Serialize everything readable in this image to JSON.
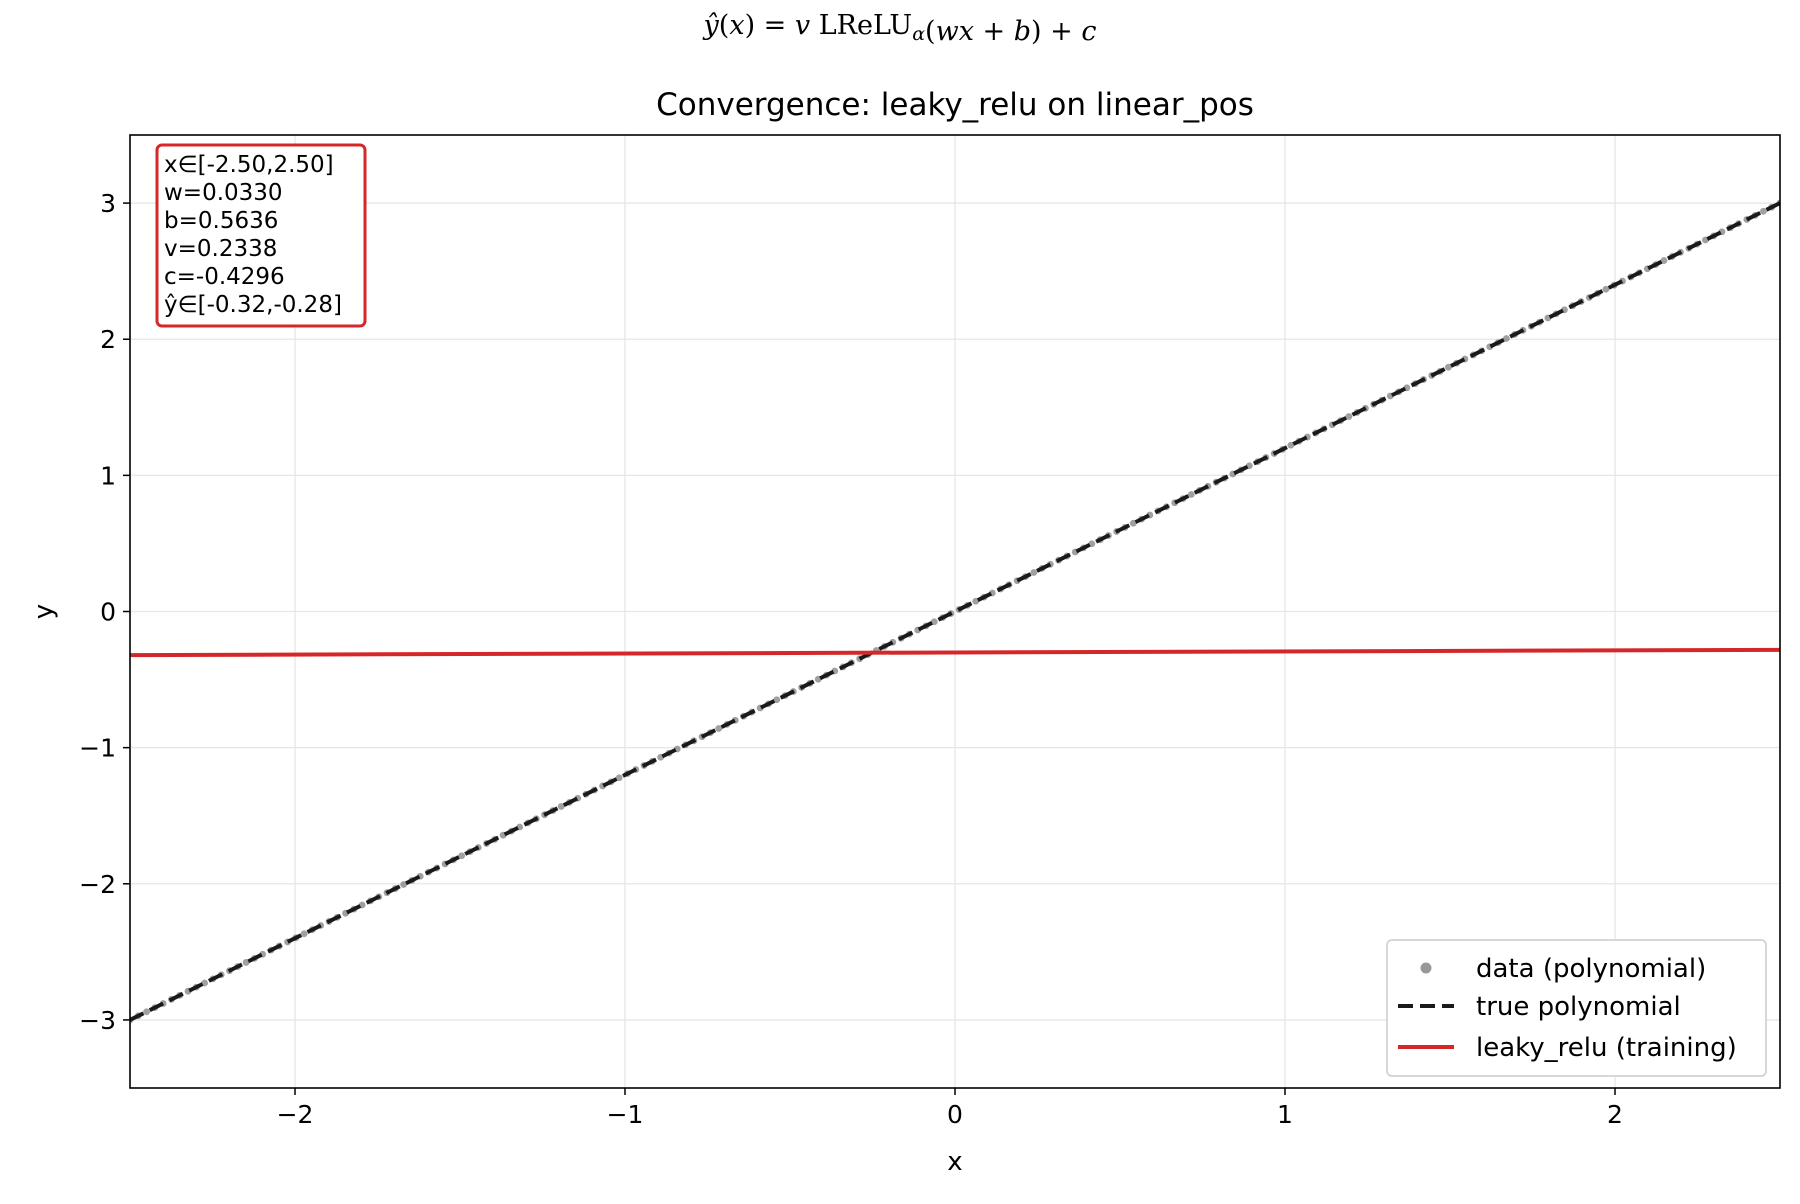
{
  "chart_data": {
    "type": "line",
    "title": "Convergence: leaky_relu on linear_pos",
    "equation": "ŷ(x) = v LReLU_α(wx + b) + c",
    "xlabel": "x",
    "ylabel": "y",
    "xlim": [
      -2.5,
      2.5
    ],
    "ylim": [
      -3.5,
      3.5
    ],
    "xticks": [
      -2,
      -1,
      0,
      1,
      2
    ],
    "xtick_labels": [
      "−2",
      "−1",
      "0",
      "1",
      "2"
    ],
    "yticks": [
      -3,
      -2,
      -1,
      0,
      1,
      2,
      3
    ],
    "ytick_labels": [
      "−3",
      "−2",
      "−1",
      "0",
      "1",
      "2",
      "3"
    ],
    "grid": true,
    "legend_position": "lower-right",
    "series": [
      {
        "name": "data (polynomial)",
        "kind": "scatter",
        "color": "#808080",
        "x_range": [
          -2.5,
          2.5
        ],
        "n_points": 200,
        "relation": "y = 1.2x"
      },
      {
        "name": "true polynomial",
        "kind": "line",
        "style": "dashed",
        "color": "#1a1a1a",
        "x": [
          -2.5,
          2.5
        ],
        "y": [
          -3.0,
          3.0
        ]
      },
      {
        "name": "leaky_relu (training)",
        "kind": "line",
        "style": "solid",
        "color": "#d62728",
        "x": [
          -2.5,
          2.5
        ],
        "y": [
          -0.3203,
          -0.2817
        ]
      }
    ],
    "annotation_box": {
      "lines": [
        "x∈[-2.50,2.50]",
        "w=0.0330",
        "b=0.5636",
        "v=0.2338",
        "c=-0.4296",
        "ŷ∈[-0.32,-0.28]"
      ],
      "border_color": "#d62728"
    }
  }
}
